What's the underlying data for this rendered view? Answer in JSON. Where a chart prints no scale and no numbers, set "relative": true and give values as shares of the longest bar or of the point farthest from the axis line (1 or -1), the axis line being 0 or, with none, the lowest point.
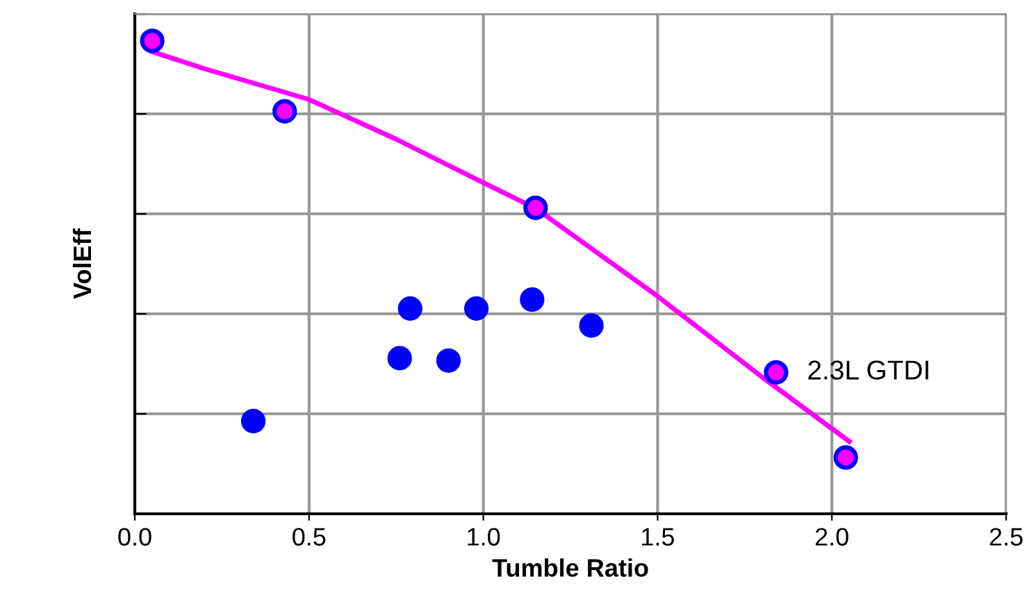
{
  "chart_data": {
    "type": "scatter",
    "xlabel": "Tumble Ratio",
    "ylabel": "VolEff",
    "relative": true,
    "xlim": [
      0,
      2.5
    ],
    "xticks": [
      {
        "value": 0,
        "label": "0.0"
      },
      {
        "value": 0.5,
        "label": "0.5"
      },
      {
        "value": 1,
        "label": "1.0"
      },
      {
        "value": 1.5,
        "label": "1.5"
      },
      {
        "value": 2,
        "label": "2.0"
      },
      {
        "value": 2.5,
        "label": "2.5"
      }
    ],
    "grid": true,
    "series": [
      {
        "marker": "circle",
        "color": "#0000ff",
        "x": [
          0.34,
          0.76,
          0.79,
          0.9,
          0.98,
          1.14,
          1.31
        ],
        "values": [
          0.196,
          0.329,
          0.434,
          0.324,
          0.434,
          0.453,
          0.398
        ]
      },
      {
        "marker": "circle",
        "color": "#ff00ff",
        "x": [
          0.05,
          0.43,
          1.15,
          1.84,
          2.04
        ],
        "values": [
          1.0,
          0.851,
          0.647,
          0.299,
          0.119
        ]
      },
      {
        "type": "line",
        "marker": "none",
        "color": "#ff00ff",
        "x": [
          0.05,
          0.2,
          0.5,
          0.75,
          1.0,
          1.15,
          1.5,
          1.8,
          2.05
        ],
        "values": [
          0.977,
          0.941,
          0.876,
          0.792,
          0.7,
          0.646,
          0.46,
          0.289,
          0.153
        ]
      }
    ],
    "annotations": [
      {
        "text": "2.3L GTDI",
        "x": 1.84,
        "y": 0.299
      }
    ]
  }
}
